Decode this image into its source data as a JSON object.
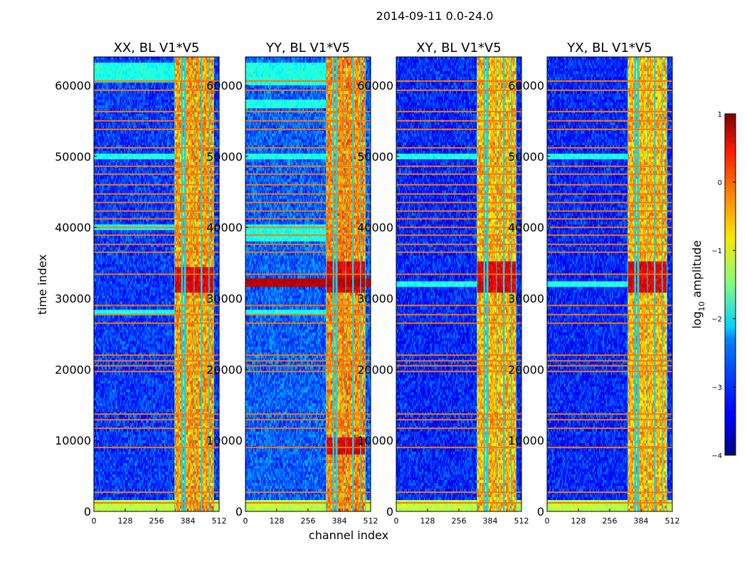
{
  "chart_data": {
    "type": "heatmap",
    "suptitle": "2014-09-11 0.0-24.0",
    "xlabel": "channel index",
    "ylabel": "time index",
    "xlim": [
      0,
      512
    ],
    "ylim": [
      0,
      64000
    ],
    "xticks": [
      0,
      128,
      256,
      384,
      512
    ],
    "yticks": [
      0,
      10000,
      20000,
      30000,
      40000,
      50000,
      60000
    ],
    "colorbar": {
      "label_pre": "log",
      "label_sub": "10",
      "label_post": " amplitude",
      "range": [
        -4,
        1
      ],
      "ticks": [
        {
          "value": 1,
          "label": "1"
        },
        {
          "value": 0,
          "label": "0"
        },
        {
          "value": -1,
          "label": "−1"
        },
        {
          "value": -2,
          "label": "−2"
        },
        {
          "value": -3,
          "label": "−3"
        },
        {
          "value": -4,
          "label": "−4"
        }
      ],
      "colormap": "jet"
    },
    "panels": [
      {
        "title": "XX, BL V1*V5",
        "background_level": -3.1,
        "band_level": -0.4,
        "strong_rows": [
          [
            31000,
            34500
          ]
        ],
        "strong_rfi_rows": [],
        "upper_cyan_rows": [
          [
            60500,
            63000
          ],
          [
            49500,
            50500
          ],
          [
            39500,
            40200
          ],
          [
            27500,
            28500
          ]
        ]
      },
      {
        "title": "YY, BL V1*V5",
        "background_level": -2.9,
        "band_level": -0.3,
        "strong_rows": [
          [
            31000,
            35000
          ],
          [
            8000,
            10500
          ]
        ],
        "strong_rfi_rows": [
          [
            31500,
            32800
          ]
        ],
        "upper_cyan_rows": [
          [
            60000,
            63000
          ],
          [
            57000,
            58000
          ],
          [
            49500,
            50500
          ],
          [
            38000,
            40500
          ],
          [
            27500,
            28500
          ]
        ]
      },
      {
        "title": "XY, BL V1*V5",
        "background_level": -3.2,
        "band_level": -0.5,
        "strong_rows": [
          [
            31000,
            35000
          ]
        ],
        "strong_rfi_rows": [],
        "upper_cyan_rows": [
          [
            49500,
            50500
          ],
          [
            31500,
            32500
          ]
        ]
      },
      {
        "title": "YX, BL V1*V5",
        "background_level": -3.2,
        "band_level": -0.5,
        "strong_rows": [
          [
            31000,
            35000
          ]
        ],
        "strong_rfi_rows": [],
        "upper_cyan_rows": [
          [
            49500,
            50500
          ],
          [
            31500,
            32500
          ]
        ]
      }
    ],
    "rfi_channel_range": [
      330,
      490
    ],
    "rfi_vertical_channels": [
      330,
      360,
      372,
      410,
      440,
      470,
      490
    ],
    "horizontal_rfi_lines": [
      1200,
      2700,
      9000,
      11700,
      12900,
      13700,
      19700,
      20500,
      21200,
      22000,
      26500,
      27700,
      29000,
      33400,
      36500,
      37600,
      38900,
      40000,
      41200,
      42300,
      43500,
      44700,
      46000,
      47500,
      48600,
      51200,
      53800,
      55000,
      56300,
      59300,
      60600
    ]
  }
}
